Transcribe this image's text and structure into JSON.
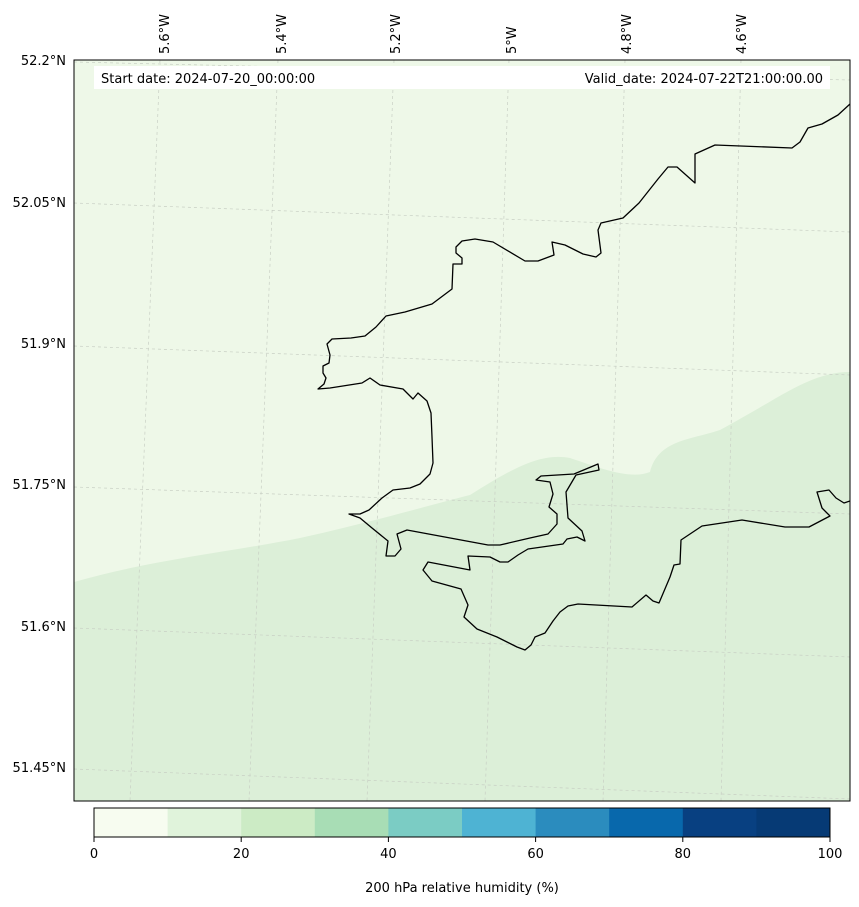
{
  "header": {
    "start_date": "Start date: 2024-07-20_00:00:00",
    "valid_date": "Valid_date: 2024-07-22T21:00:00.00"
  },
  "axes": {
    "lon_labels": [
      "5.6°W",
      "5.4°W",
      "5.2°W",
      "5°W",
      "4.8°W",
      "4.6°W"
    ],
    "lat_labels": [
      "52.2°N",
      "52.05°N",
      "51.9°N",
      "51.75°N",
      "51.6°N",
      "51.45°N"
    ]
  },
  "colorbar": {
    "label": "200 hPa relative humidity (%)",
    "tick_labels": [
      "0",
      "20",
      "40",
      "60",
      "80",
      "100"
    ],
    "colors": [
      "#f7fcf0",
      "#e0f3db",
      "#ccebc5",
      "#a8ddb5",
      "#7bccc4",
      "#4eb3d3",
      "#2b8cbe",
      "#0868ac",
      "#084081",
      "#063a75"
    ]
  },
  "map": {
    "field_colors": {
      "band_0_10": "#eef8e8",
      "band_10_20": "#dcefd8"
    },
    "coastline_color": "#000000"
  }
}
